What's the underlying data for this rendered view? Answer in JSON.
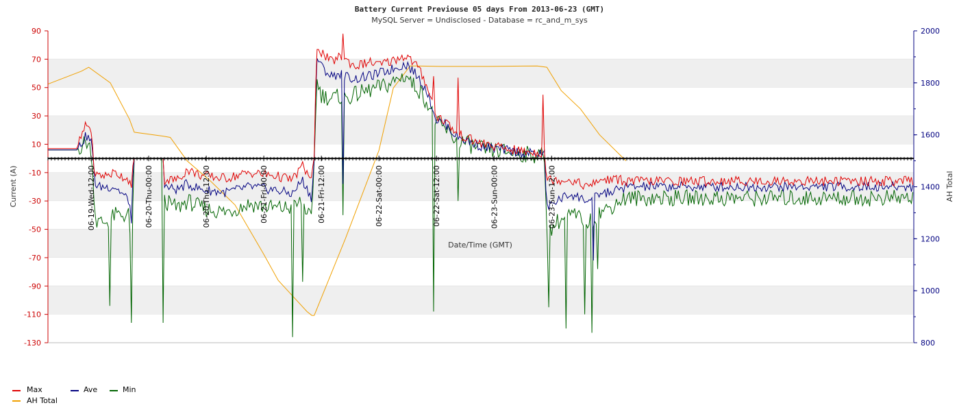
{
  "chart_data": {
    "type": "line",
    "title": "Battery Current Previouse 05 days From 2013-06-23 (GMT)",
    "subtitle": "MySQL Server = Undisclosed - Database = rc_and_m_sys",
    "xlabel": "Date/Time (GMT)",
    "ylabel_left": "Current (A)",
    "ylabel_right": "AH Total",
    "y_left_range": [
      -130,
      90
    ],
    "y_left_ticks": [
      90,
      70,
      50,
      30,
      10,
      -10,
      -30,
      -50,
      -70,
      -90,
      -110,
      -130
    ],
    "y_right_range": [
      800,
      2000
    ],
    "y_right_ticks": [
      2000,
      1800,
      1600,
      1400,
      1200,
      1000,
      800
    ],
    "x_range_hours": [
      -117,
      63.5
    ],
    "x_ticks": [
      {
        "label": "06-19-Wed-12:00",
        "hour": -108
      },
      {
        "label": "06-20-Thu-00:00",
        "hour": -96
      },
      {
        "label": "06-20-Thu-12:00",
        "hour": -84
      },
      {
        "label": "06-21-Fri-00:00",
        "hour": -72
      },
      {
        "label": "06-21-Fri-12:00",
        "hour": -60
      },
      {
        "label": "06-22-Sat-00:00",
        "hour": -48
      },
      {
        "label": "06-22-Sat-12:00",
        "hour": -36
      },
      {
        "label": "06-23-Sun-00:00",
        "hour": -24
      },
      {
        "label": "06-23-Sun-12:00",
        "hour": -12
      }
    ],
    "grid": "alternating horizontal bands",
    "legend_position": "bottom-left",
    "colors": {
      "max": "#e00000",
      "ave": "#000080",
      "min": "#006400",
      "ah": "#f0a000",
      "zero": "#000000"
    },
    "series": [
      {
        "name": "Max",
        "axis": "left",
        "points": [
          [
            -117,
            7
          ],
          [
            -111,
            7
          ],
          [
            -109,
            24
          ],
          [
            -108,
            20
          ],
          [
            -107,
            -12
          ],
          [
            -105,
            -12
          ],
          [
            -103,
            -10
          ],
          [
            -100,
            -15
          ],
          [
            -99.5,
            -25
          ],
          [
            -99.2,
            0
          ],
          [
            -93,
            0
          ],
          [
            -92.8,
            -15
          ],
          [
            -90,
            -15
          ],
          [
            -88,
            -8
          ],
          [
            -85,
            -12
          ],
          [
            -80,
            -14
          ],
          [
            -75,
            -10
          ],
          [
            -70,
            -12
          ],
          [
            -66,
            -15
          ],
          [
            -64,
            -5
          ],
          [
            -62,
            -15
          ],
          [
            -61.5,
            0
          ],
          [
            -61,
            80
          ],
          [
            -60,
            75
          ],
          [
            -58,
            68
          ],
          [
            -56,
            72
          ],
          [
            -55,
            70
          ],
          [
            -53,
            65
          ],
          [
            -50,
            68
          ],
          [
            -48,
            66
          ],
          [
            -46,
            68
          ],
          [
            -43,
            72
          ],
          [
            -42,
            72
          ],
          [
            -41,
            68
          ],
          [
            -40,
            65
          ],
          [
            -38,
            52
          ],
          [
            -36,
            30
          ],
          [
            -34,
            26
          ],
          [
            -32,
            18
          ],
          [
            -30,
            15
          ],
          [
            -28,
            12
          ],
          [
            -26,
            10
          ],
          [
            -22,
            7
          ],
          [
            -18,
            5
          ],
          [
            -14,
            4
          ],
          [
            -13.5,
            4
          ],
          [
            -13,
            -15
          ],
          [
            -11,
            -15
          ],
          [
            -8,
            -15
          ],
          [
            -6,
            -18
          ],
          [
            -4,
            -20
          ],
          [
            -2,
            -15
          ],
          [
            0,
            -15
          ],
          [
            2,
            -15
          ],
          [
            3.5,
            -16
          ]
        ]
      },
      {
        "name": "Ave",
        "axis": "left",
        "points": [
          [
            -117,
            6
          ],
          [
            -111,
            6
          ],
          [
            -109,
            16
          ],
          [
            -108,
            12
          ],
          [
            -107,
            -20
          ],
          [
            -105,
            -20
          ],
          [
            -103,
            -20
          ],
          [
            -100,
            -30
          ],
          [
            -99.5,
            -50
          ],
          [
            -99.2,
            0
          ],
          [
            -93,
            0
          ],
          [
            -92.8,
            -20
          ],
          [
            -90,
            -22
          ],
          [
            -88,
            -18
          ],
          [
            -85,
            -22
          ],
          [
            -80,
            -24
          ],
          [
            -75,
            -20
          ],
          [
            -70,
            -22
          ],
          [
            -66,
            -25
          ],
          [
            -64,
            -15
          ],
          [
            -62,
            -28
          ],
          [
            -61.5,
            0
          ],
          [
            -61,
            72
          ],
          [
            -60,
            65
          ],
          [
            -58,
            58
          ],
          [
            -56,
            60
          ],
          [
            -55,
            58
          ],
          [
            -53,
            56
          ],
          [
            -50,
            58
          ],
          [
            -48,
            60
          ],
          [
            -46,
            62
          ],
          [
            -43,
            66
          ],
          [
            -42,
            66
          ],
          [
            -41,
            62
          ],
          [
            -40,
            58
          ],
          [
            -38,
            48
          ],
          [
            -36,
            27
          ],
          [
            -34,
            24
          ],
          [
            -32,
            16
          ],
          [
            -30,
            13
          ],
          [
            -28,
            10
          ],
          [
            -26,
            8
          ],
          [
            -22,
            6
          ],
          [
            -18,
            4
          ],
          [
            -14,
            3
          ],
          [
            -13.5,
            3
          ],
          [
            -13,
            -35
          ],
          [
            -11,
            -30
          ],
          [
            -8,
            -25
          ],
          [
            -6,
            -28
          ],
          [
            -4,
            -30
          ],
          [
            -2,
            -25
          ],
          [
            0,
            -24
          ],
          [
            2,
            -22
          ],
          [
            3.5,
            -20
          ]
        ]
      },
      {
        "name": "Min",
        "axis": "left",
        "points": [
          [
            -117,
            6
          ],
          [
            -111,
            6
          ],
          [
            -109,
            12
          ],
          [
            -108,
            6
          ],
          [
            -107,
            -45
          ],
          [
            -105,
            -45
          ],
          [
            -103,
            -40
          ],
          [
            -100,
            -40
          ],
          [
            -99.5,
            -112
          ],
          [
            -99.2,
            0
          ],
          [
            -93,
            0
          ],
          [
            -92.8,
            -30
          ],
          [
            -90,
            -35
          ],
          [
            -88,
            -30
          ],
          [
            -85,
            -35
          ],
          [
            -80,
            -38
          ],
          [
            -75,
            -32
          ],
          [
            -70,
            -35
          ],
          [
            -66,
            -35
          ],
          [
            -64,
            -30
          ],
          [
            -62,
            -45
          ],
          [
            -61.5,
            0
          ],
          [
            -61,
            55
          ],
          [
            -60,
            45
          ],
          [
            -58,
            42
          ],
          [
            -56,
            44
          ],
          [
            -55,
            42
          ],
          [
            -53,
            45
          ],
          [
            -50,
            48
          ],
          [
            -48,
            50
          ],
          [
            -46,
            52
          ],
          [
            -43,
            58
          ],
          [
            -42,
            58
          ],
          [
            -41,
            52
          ],
          [
            -40,
            50
          ],
          [
            -38,
            40
          ],
          [
            -36,
            25
          ],
          [
            -34,
            20
          ],
          [
            -32,
            13
          ],
          [
            -30,
            11
          ],
          [
            -28,
            8
          ],
          [
            -26,
            6
          ],
          [
            -22,
            5
          ],
          [
            -18,
            3
          ],
          [
            -14,
            2
          ],
          [
            -13.5,
            2
          ],
          [
            -13,
            -55
          ],
          [
            -11,
            -45
          ],
          [
            -8,
            -40
          ],
          [
            -6,
            -42
          ],
          [
            -4,
            -45
          ],
          [
            -2,
            -38
          ],
          [
            0,
            -35
          ],
          [
            2,
            -30
          ],
          [
            3.5,
            -28
          ]
        ]
      },
      {
        "name": "AH Total",
        "axis": "right",
        "points": [
          [
            -117,
            1795
          ],
          [
            -110,
            1845
          ],
          [
            -108.5,
            1860
          ],
          [
            -104,
            1800
          ],
          [
            -100,
            1660
          ],
          [
            -99,
            1610
          ],
          [
            -93,
            1595
          ],
          [
            -91.5,
            1590
          ],
          [
            -88,
            1500
          ],
          [
            -83,
            1420
          ],
          [
            -78,
            1330
          ],
          [
            -72,
            1140
          ],
          [
            -69,
            1040
          ],
          [
            -65,
            960
          ],
          [
            -63,
            920
          ],
          [
            -62,
            905
          ],
          [
            -61.5,
            905
          ],
          [
            -55,
            1200
          ],
          [
            -48,
            1540
          ],
          [
            -45,
            1780
          ],
          [
            -41.5,
            1865
          ],
          [
            -40,
            1865
          ],
          [
            -35,
            1863
          ],
          [
            -25,
            1863
          ],
          [
            -15,
            1865
          ],
          [
            -13,
            1860
          ],
          [
            -10,
            1770
          ],
          [
            -6,
            1700
          ],
          [
            -2,
            1600
          ],
          [
            3.5,
            1500
          ]
        ]
      }
    ],
    "spikes": [
      {
        "series": "Max",
        "hour": -107.5,
        "value": -8
      },
      {
        "series": "Min",
        "hour": -104,
        "value": -104
      },
      {
        "series": "Min",
        "hour": -99.5,
        "value": -116
      },
      {
        "series": "Min",
        "hour": -92.9,
        "value": -116
      },
      {
        "series": "Min",
        "hour": -66,
        "value": -126
      },
      {
        "series": "Min",
        "hour": -64,
        "value": -87
      },
      {
        "series": "Max",
        "hour": -55.5,
        "value": 88
      },
      {
        "series": "Min",
        "hour": -55.5,
        "value": -40
      },
      {
        "series": "Ave",
        "hour": -55.5,
        "value": -18
      },
      {
        "series": "Max",
        "hour": -36.5,
        "value": 58
      },
      {
        "series": "Min",
        "hour": -36.5,
        "value": -108
      },
      {
        "series": "Max",
        "hour": -31.5,
        "value": 57
      },
      {
        "series": "Min",
        "hour": -31.5,
        "value": -30
      },
      {
        "series": "Max",
        "hour": -13.7,
        "value": 45
      },
      {
        "series": "Min",
        "hour": -12.7,
        "value": -105
      },
      {
        "series": "Min",
        "hour": -9,
        "value": -120
      },
      {
        "series": "Min",
        "hour": -5,
        "value": -110
      },
      {
        "series": "Min",
        "hour": -3.6,
        "value": -123
      },
      {
        "series": "Ave",
        "hour": -3.2,
        "value": -72
      },
      {
        "series": "Min",
        "hour": -2.5,
        "value": -78
      }
    ]
  },
  "legend": [
    {
      "name": "Max",
      "color": "#e00000"
    },
    {
      "name": "Ave",
      "color": "#000080"
    },
    {
      "name": "Min",
      "color": "#006400"
    },
    {
      "name": "AH Total",
      "color": "#f0a000"
    }
  ]
}
